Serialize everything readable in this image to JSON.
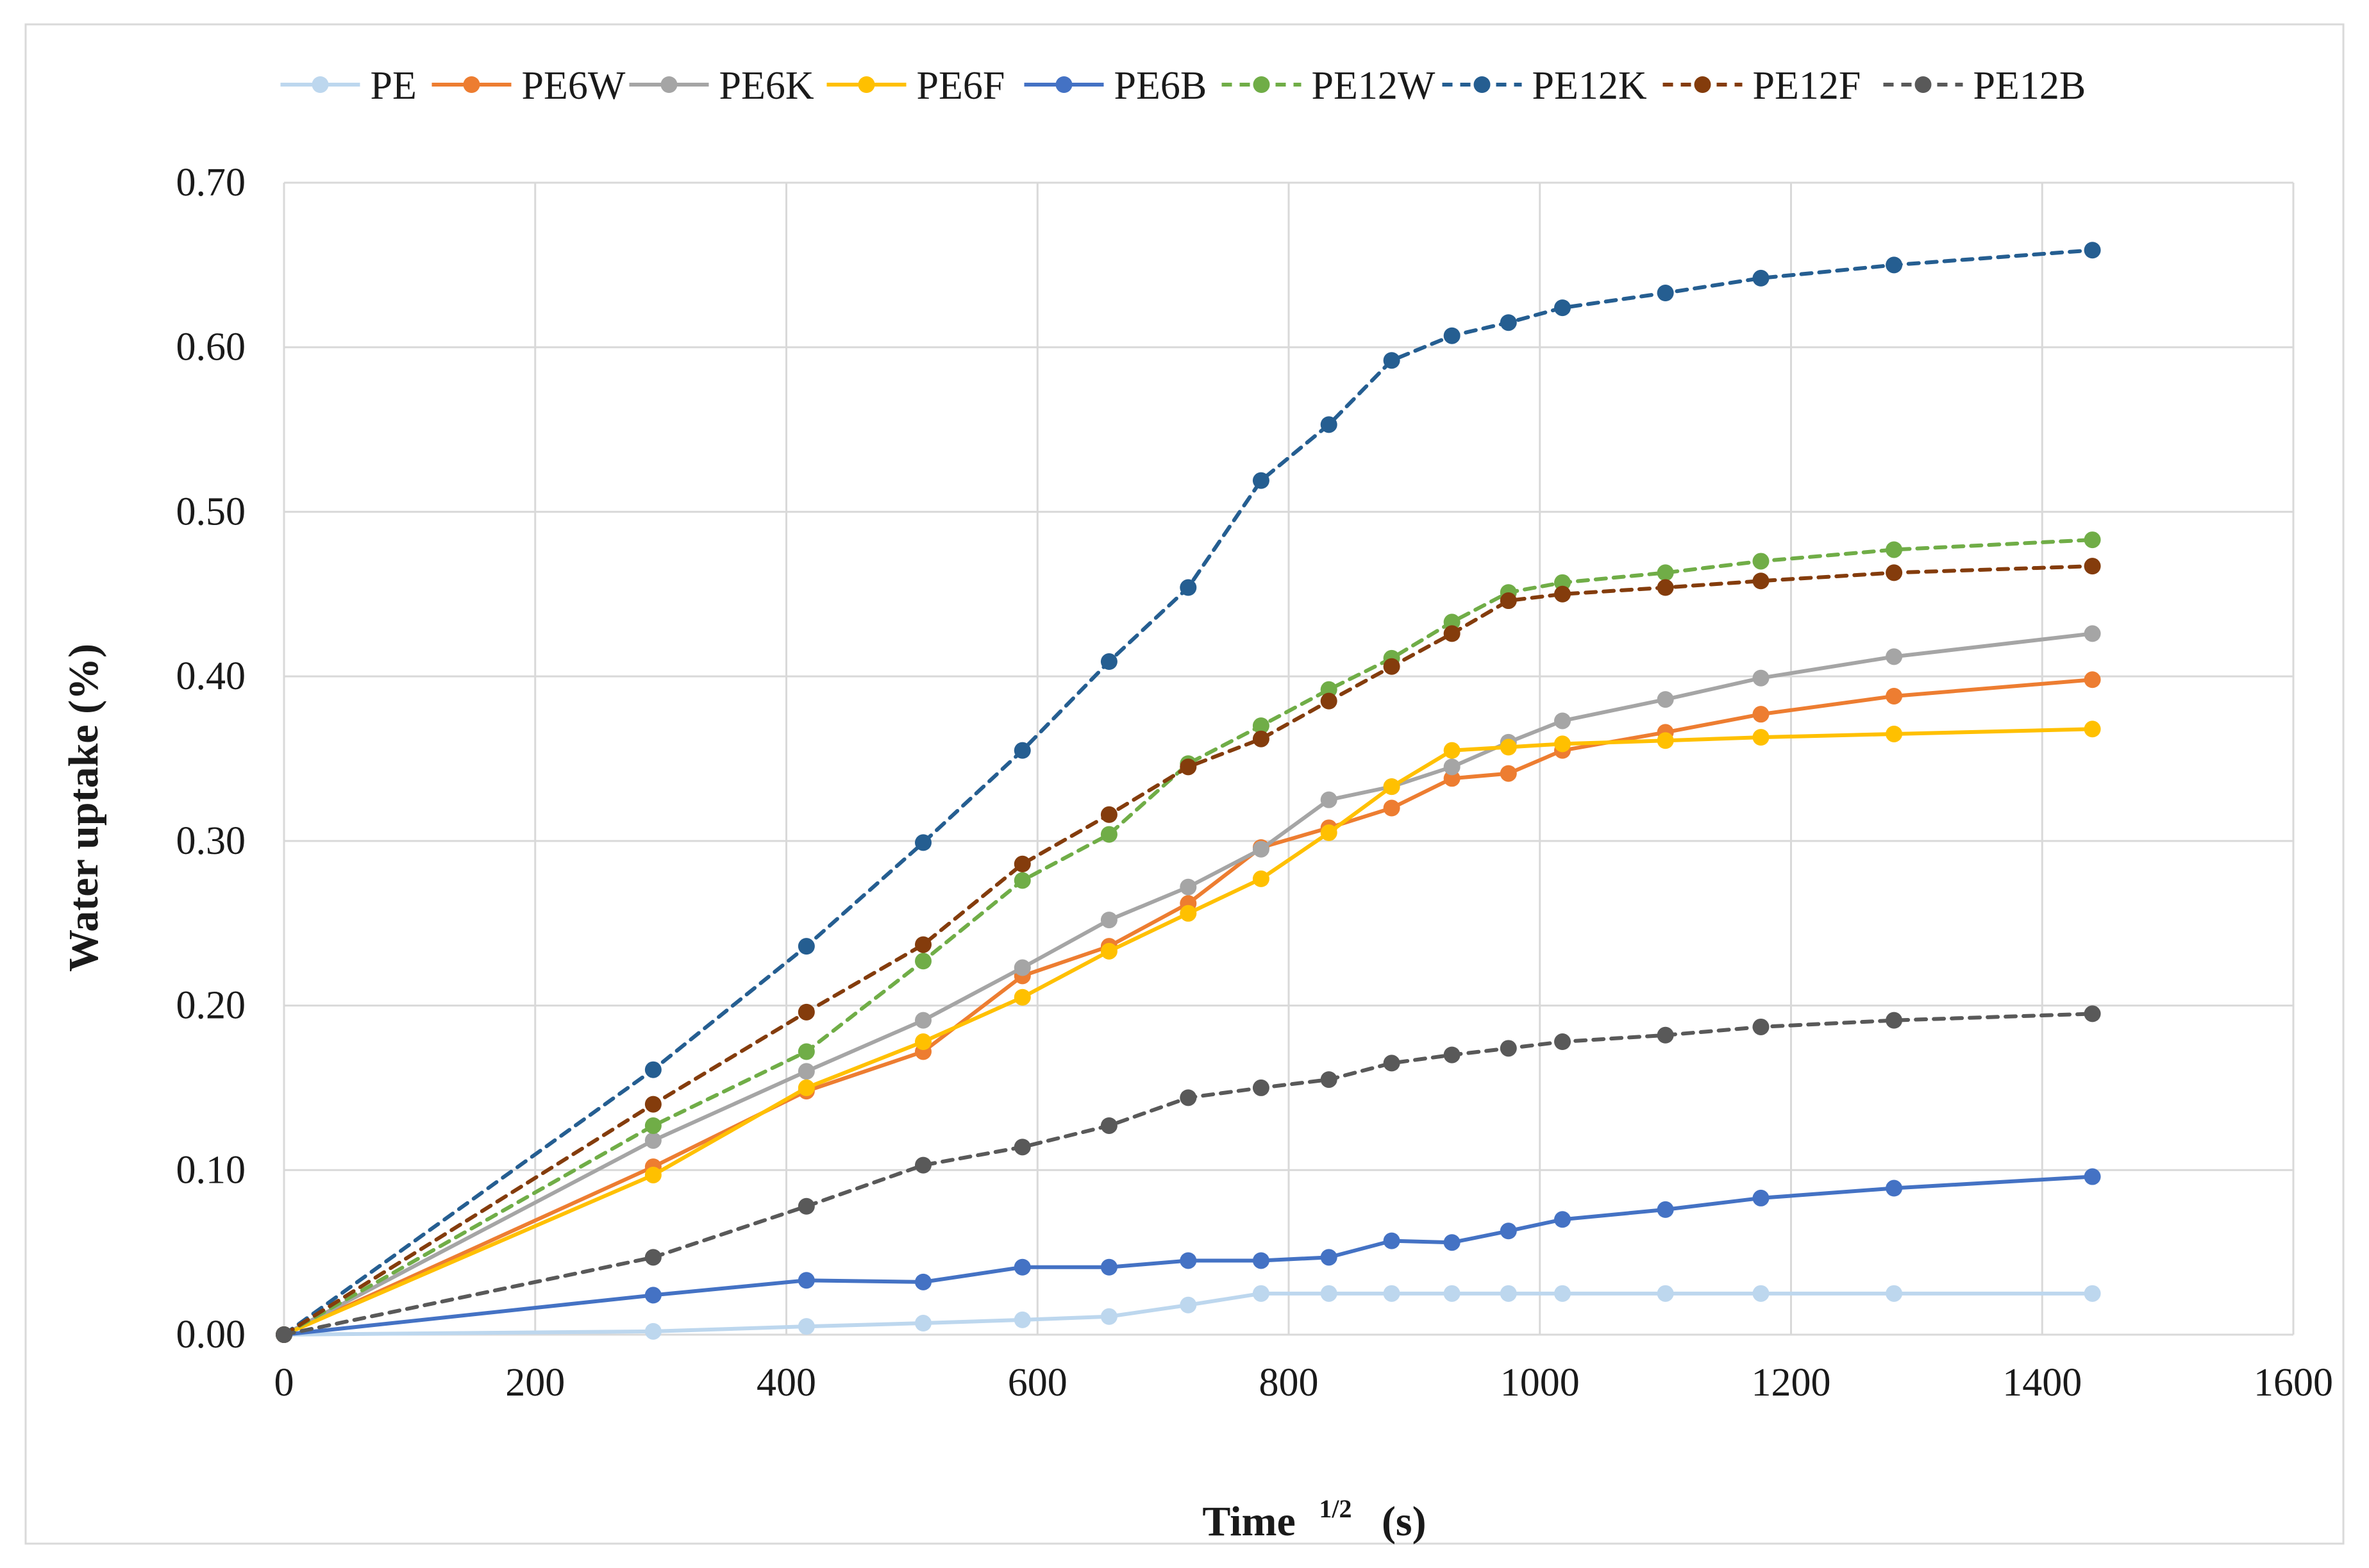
{
  "chart_data": {
    "type": "line",
    "xlabel": "Time",
    "xlabel_superscript": "1/2",
    "xlabel_unit": "(s)",
    "ylabel": "Water uptake (%)",
    "xlim": [
      0,
      1600
    ],
    "ylim": [
      0,
      0.7
    ],
    "xticks": [
      0,
      200,
      400,
      600,
      800,
      1000,
      1200,
      1400,
      1600
    ],
    "xtick_labels": [
      "0",
      "200",
      "400",
      "600",
      "800",
      "1000",
      "1200",
      "1400",
      "1600"
    ],
    "yticks": [
      0,
      0.1,
      0.2,
      0.3,
      0.4,
      0.5,
      0.6,
      0.7
    ],
    "ytick_labels": [
      "0.00",
      "0.10",
      "0.20",
      "0.30",
      "0.40",
      "0.50",
      "0.60",
      "0.70"
    ],
    "grid": true,
    "legend_position": "top",
    "x": [
      0,
      294,
      416,
      509,
      588,
      657,
      720,
      778,
      832,
      882,
      930,
      975,
      1018,
      1100,
      1176,
      1282,
      1440
    ],
    "series": [
      {
        "name": "PE",
        "color": "#bdd7ee",
        "dashed": false,
        "values": [
          0,
          0.002,
          0.005,
          0.007,
          0.009,
          0.011,
          0.018,
          0.025,
          0.025,
          0.025,
          0.025,
          0.025,
          0.025,
          0.025,
          0.025,
          0.025,
          0.025
        ]
      },
      {
        "name": "PE6W",
        "color": "#ed7d31",
        "dashed": false,
        "values": [
          0,
          0.102,
          0.148,
          0.172,
          0.218,
          0.236,
          0.262,
          0.296,
          0.308,
          0.32,
          0.338,
          0.341,
          0.355,
          0.366,
          0.377,
          0.388,
          0.398
        ]
      },
      {
        "name": "PE6K",
        "color": "#a5a5a5",
        "dashed": false,
        "values": [
          0,
          0.118,
          0.16,
          0.191,
          0.223,
          0.252,
          0.272,
          0.295,
          0.325,
          0.333,
          0.345,
          0.36,
          0.373,
          0.386,
          0.399,
          0.412,
          0.426
        ]
      },
      {
        "name": "PE6F",
        "color": "#ffc000",
        "dashed": false,
        "values": [
          0,
          0.097,
          0.15,
          0.178,
          0.205,
          0.233,
          0.256,
          0.277,
          0.305,
          0.333,
          0.355,
          0.357,
          0.359,
          0.361,
          0.363,
          0.365,
          0.368
        ]
      },
      {
        "name": "PE6B",
        "color": "#4472c4",
        "dashed": false,
        "values": [
          0,
          0.024,
          0.033,
          0.032,
          0.041,
          0.041,
          0.045,
          0.045,
          0.047,
          0.057,
          0.056,
          0.063,
          0.07,
          0.076,
          0.083,
          0.089,
          0.096
        ]
      },
      {
        "name": "PE12W",
        "color": "#70ad47",
        "dashed": true,
        "values": [
          0,
          0.127,
          0.172,
          0.227,
          0.276,
          0.304,
          0.347,
          0.37,
          0.392,
          0.411,
          0.433,
          0.451,
          0.457,
          0.463,
          0.47,
          0.477,
          0.483
        ]
      },
      {
        "name": "PE12K",
        "color": "#255e91",
        "dashed": true,
        "values": [
          0,
          0.161,
          0.236,
          0.299,
          0.355,
          0.409,
          0.454,
          0.519,
          0.553,
          0.592,
          0.607,
          0.615,
          0.624,
          0.633,
          0.642,
          0.65,
          0.659
        ]
      },
      {
        "name": "PE12F",
        "color": "#843c0c",
        "dashed": true,
        "values": [
          0,
          0.14,
          0.196,
          0.237,
          0.286,
          0.316,
          0.345,
          0.362,
          0.385,
          0.406,
          0.426,
          0.446,
          0.45,
          0.454,
          0.458,
          0.463,
          0.467
        ]
      },
      {
        "name": "PE12B",
        "color": "#595959",
        "dashed": true,
        "values": [
          0,
          0.047,
          0.078,
          0.103,
          0.114,
          0.127,
          0.144,
          0.15,
          0.155,
          0.165,
          0.17,
          0.174,
          0.178,
          0.182,
          0.187,
          0.191,
          0.195
        ]
      }
    ]
  }
}
